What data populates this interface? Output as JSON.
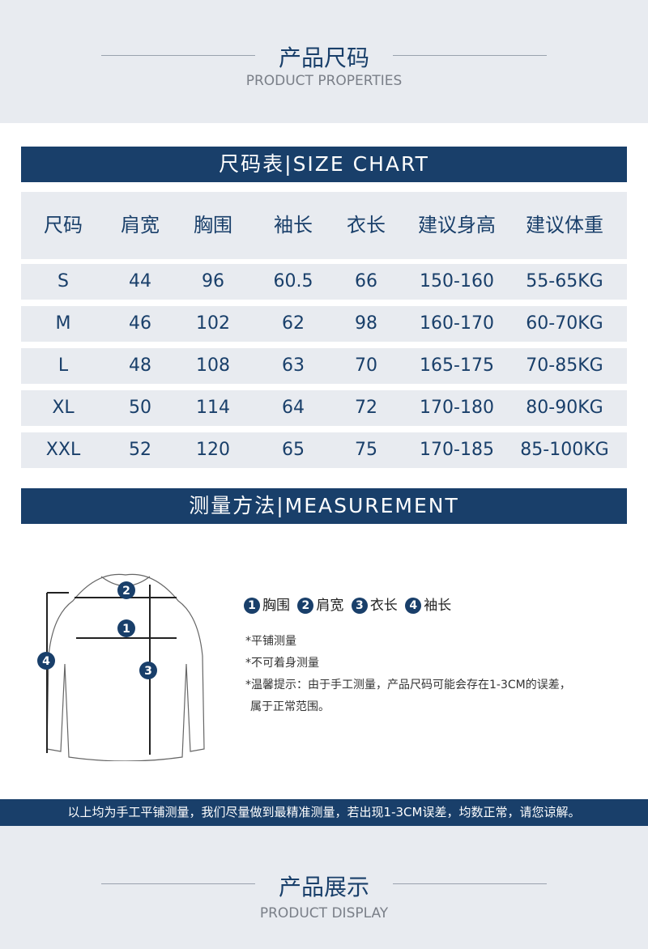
{
  "top": {
    "title": "产品尺码",
    "subtitle": "PRODUCT PROPERTIES"
  },
  "size_chart": {
    "title": "尺码表|SIZE CHART",
    "headers": [
      "尺码",
      "肩宽",
      "胸围",
      "袖长",
      "衣长",
      "建议身高",
      "建议体重"
    ],
    "rows": [
      [
        "S",
        "44",
        "96",
        "60.5",
        "66",
        "150-160",
        "55-65KG"
      ],
      [
        "M",
        "46",
        "102",
        "62",
        "98",
        "160-170",
        "60-70KG"
      ],
      [
        "L",
        "48",
        "108",
        "63",
        "70",
        "165-175",
        "70-85KG"
      ],
      [
        "XL",
        "50",
        "114",
        "64",
        "72",
        "170-180",
        "80-90KG"
      ],
      [
        "XXL",
        "52",
        "120",
        "65",
        "75",
        "170-185",
        "85-100KG"
      ]
    ]
  },
  "measurement": {
    "title": "测量方法|MEASUREMENT",
    "legend": [
      {
        "n": "1",
        "label": "胸围"
      },
      {
        "n": "2",
        "label": "肩宽"
      },
      {
        "n": "3",
        "label": "衣长"
      },
      {
        "n": "4",
        "label": "袖长"
      }
    ],
    "notes": [
      "*平铺测量",
      "*不可着身测量",
      "*温馨提示：由于手工测量，产品尺码可能会存在1-3CM的误差，",
      "属于正常范围。"
    ]
  },
  "footer_notice": "以上均为手工平铺测量，我们尽量做到最精准测量，若出现1-3CM误差，均数正常，请您谅解。",
  "bottom": {
    "title": "产品展示",
    "subtitle": "PRODUCT DISPLAY"
  },
  "colors": {
    "navy": "#193f6a",
    "grey": "#e8ebf0"
  }
}
